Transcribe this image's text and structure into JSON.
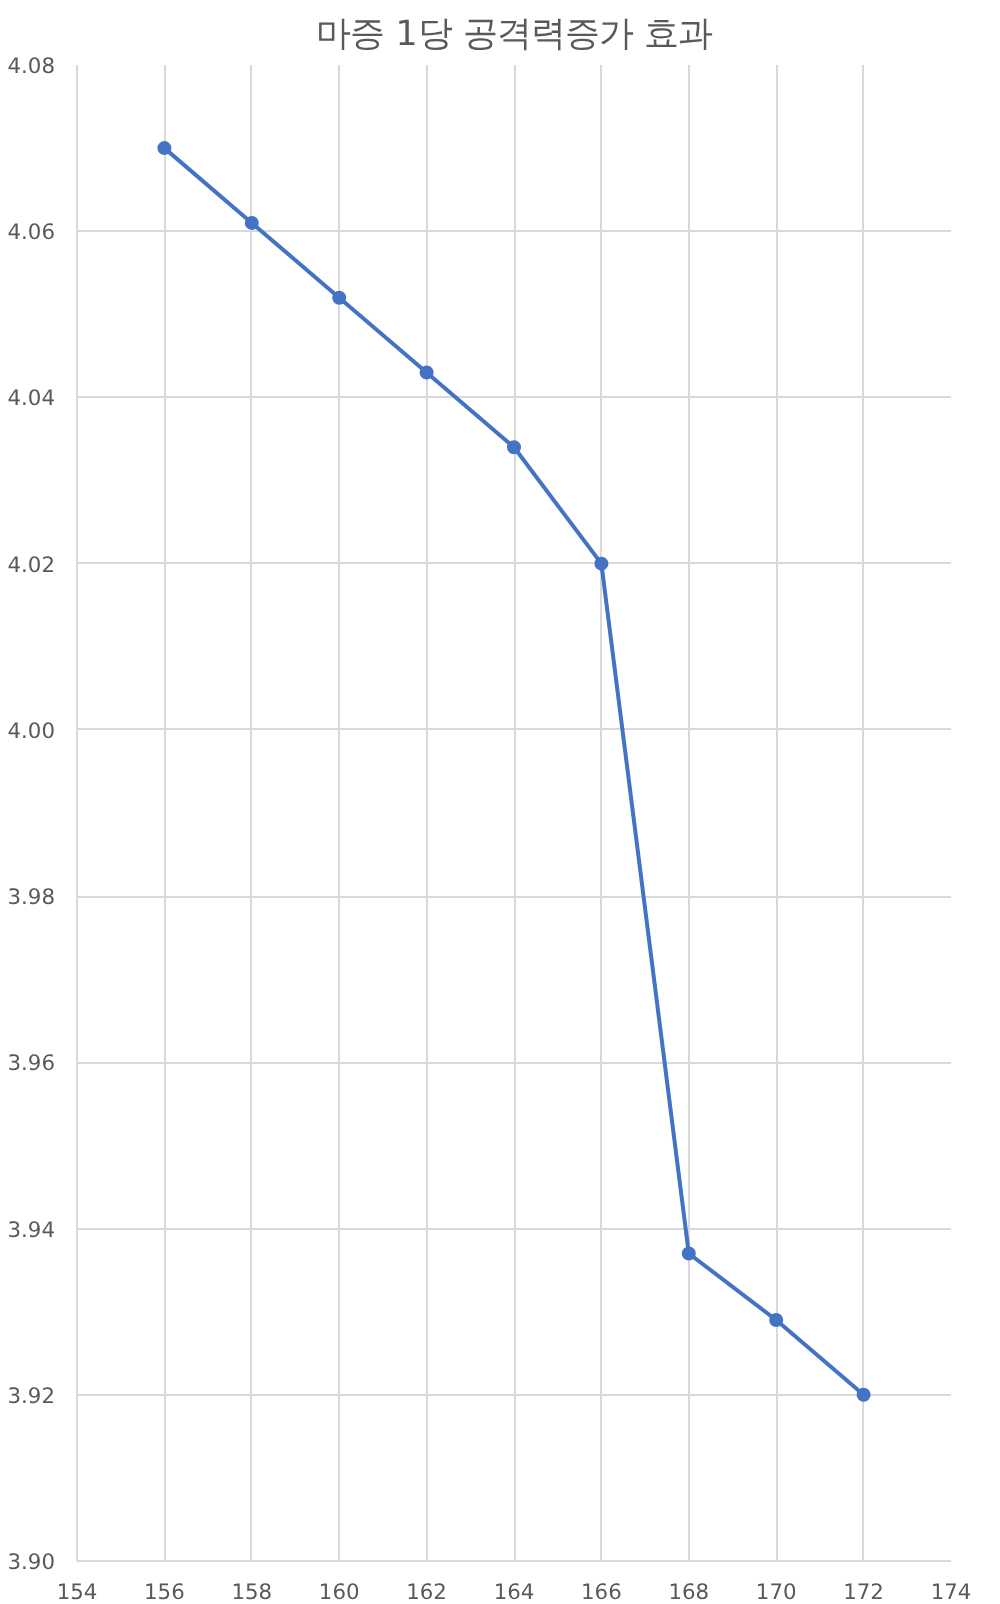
{
  "chart_data": {
    "type": "line",
    "title": "마증 1당 공격력증가 효과",
    "x": [
      156,
      158,
      160,
      162,
      164,
      166,
      168,
      170,
      172
    ],
    "series": [
      {
        "color": "#4472c4",
        "values": [
          4.07,
          4.061,
          4.052,
          4.043,
          4.034,
          4.02,
          3.937,
          3.929,
          3.92
        ]
      }
    ],
    "xlim": [
      154,
      174
    ],
    "xticks": [
      154,
      156,
      158,
      160,
      162,
      164,
      166,
      168,
      170,
      172,
      174
    ],
    "ylim": [
      3.9,
      4.08
    ],
    "yticks": [
      {
        "value": 3.9,
        "label": "3.90"
      },
      {
        "value": 3.92,
        "label": "3.92"
      },
      {
        "value": 3.94,
        "label": "3.94"
      },
      {
        "value": 3.96,
        "label": "3.96"
      },
      {
        "value": 3.98,
        "label": "3.98"
      },
      {
        "value": 4.0,
        "label": "4.00"
      },
      {
        "value": 4.02,
        "label": "4.02"
      },
      {
        "value": 4.04,
        "label": "4.04"
      },
      {
        "value": 4.06,
        "label": "4.06"
      },
      {
        "value": 4.08,
        "label": "4.08"
      }
    ],
    "grid": true,
    "marker": "circle",
    "line_style": "solid"
  }
}
